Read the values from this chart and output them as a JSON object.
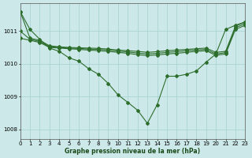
{
  "xlabel": "Graphe pression niveau de la mer (hPa)",
  "background_color": "#cce8e8",
  "grid_color": "#aad4d4",
  "line_color": "#2d6e2d",
  "x_ticks": [
    0,
    1,
    2,
    3,
    4,
    5,
    6,
    7,
    8,
    9,
    10,
    11,
    12,
    13,
    14,
    15,
    16,
    17,
    18,
    19,
    20,
    21,
    22,
    23
  ],
  "y_ticks": [
    1008,
    1009,
    1010,
    1011
  ],
  "ylim": [
    1007.7,
    1011.85
  ],
  "xlim": [
    0,
    23
  ],
  "series_dip": [
    1011.6,
    1011.05,
    1010.75,
    1010.48,
    1010.38,
    1010.18,
    1010.08,
    1009.85,
    1009.68,
    1009.4,
    1009.05,
    1008.82,
    1008.58,
    1008.18,
    1008.75,
    1009.62,
    1009.62,
    1009.68,
    1009.78,
    1010.05,
    1010.3,
    1011.05,
    1011.18,
    1011.28
  ],
  "series_flat1": [
    1011.6,
    1010.78,
    1010.72,
    1010.55,
    1010.52,
    1010.5,
    1010.49,
    1010.48,
    1010.47,
    1010.45,
    1010.42,
    1010.4,
    1010.38,
    1010.35,
    1010.37,
    1010.4,
    1010.42,
    1010.44,
    1010.46,
    1010.48,
    1010.35,
    1010.38,
    1011.15,
    1011.28
  ],
  "series_flat2": [
    1011.0,
    1010.75,
    1010.68,
    1010.52,
    1010.5,
    1010.48,
    1010.47,
    1010.45,
    1010.44,
    1010.42,
    1010.39,
    1010.36,
    1010.33,
    1010.3,
    1010.32,
    1010.35,
    1010.37,
    1010.4,
    1010.42,
    1010.44,
    1010.3,
    1010.34,
    1011.1,
    1011.23
  ],
  "series_flat3": [
    1010.78,
    1010.72,
    1010.65,
    1010.5,
    1010.48,
    1010.46,
    1010.44,
    1010.42,
    1010.4,
    1010.38,
    1010.35,
    1010.32,
    1010.28,
    1010.25,
    1010.27,
    1010.3,
    1010.32,
    1010.35,
    1010.38,
    1010.4,
    1010.26,
    1010.3,
    1011.05,
    1011.18
  ]
}
